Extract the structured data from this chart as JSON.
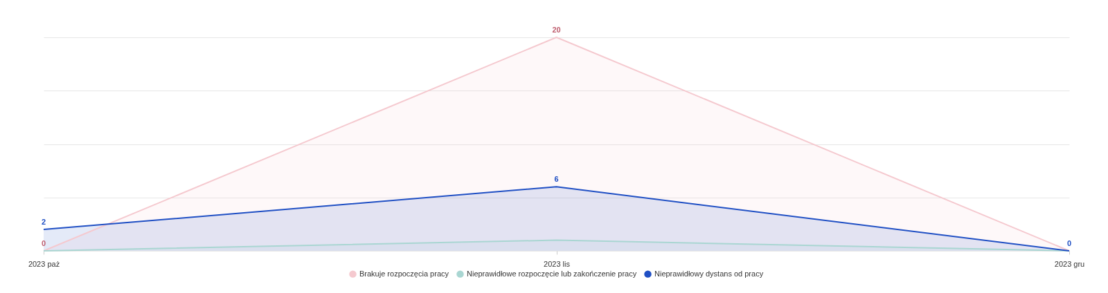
{
  "chart_data": {
    "type": "area",
    "categories": [
      "2023 paż",
      "2023 lis",
      "2023 gru"
    ],
    "series": [
      {
        "name": "Brakuje rozpoczęcia pracy",
        "color": "#f5c9cf",
        "values": [
          0,
          20,
          0
        ],
        "value_labels": [
          "0",
          "20",
          null
        ]
      },
      {
        "name": "Nieprawidłowe rozpoczęcie lub zakończenie pracy",
        "color": "#a9d6d2",
        "values": [
          0,
          1,
          0
        ]
      },
      {
        "name": "Nieprawidłowy dystans od pracy",
        "color": "#1f4fc4",
        "values": [
          2,
          6,
          0
        ],
        "value_labels": [
          "2",
          "6",
          "0"
        ]
      }
    ],
    "ylim": [
      0,
      20
    ],
    "yticks": [
      {
        "value": 0,
        "label": null
      },
      {
        "value": 5,
        "label": null
      },
      {
        "value": 10,
        "label": null
      },
      {
        "value": 15,
        "label": null
      },
      {
        "value": 20,
        "label": null
      }
    ],
    "tick_labels": "x",
    "grid": "y",
    "legend": "bottom"
  }
}
